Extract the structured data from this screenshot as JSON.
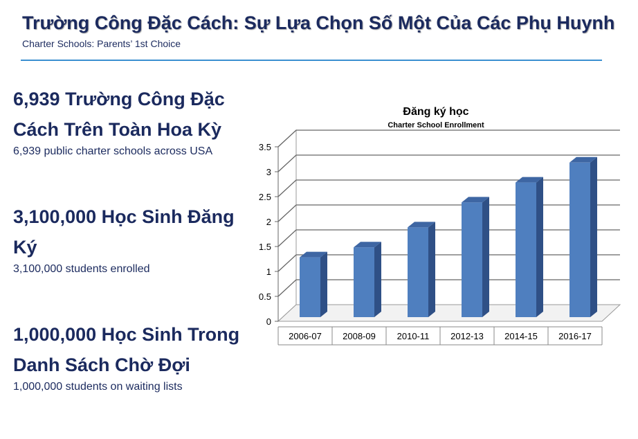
{
  "header": {
    "title": "Trường Công Đặc Cách: Sự Lựa Chọn Số Một Của Các Phụ Huynh",
    "subtitle": "Charter Schools: Parents’ 1st Choice"
  },
  "stats": [
    {
      "headline": "6,939 Trường Công Đặc Cách Trên Toàn Hoa Kỳ",
      "caption": "6,939 public charter schools across USA"
    },
    {
      "headline": "3,100,000 Học Sinh Đăng Ký",
      "caption": "3,100,000 students enrolled"
    },
    {
      "headline": "1,000,000 Học Sinh Trong Danh Sách Chờ Đợi",
      "caption": "1,000,000 students on waiting lists"
    }
  ],
  "colors": {
    "primary_text": "#1b2a5e",
    "divider": "#3a8fd0",
    "bar": "#4f7fbf",
    "bar_side": "#2f5086"
  },
  "chart_data": {
    "type": "bar",
    "title": "Đăng ký học",
    "subtitle": "Charter School Enrollment",
    "categories": [
      "2006-07",
      "2008-09",
      "2010-11",
      "2012-13",
      "2014-15",
      "2016-17"
    ],
    "values": [
      1.2,
      1.4,
      1.8,
      2.3,
      2.7,
      3.1
    ],
    "yticks": [
      "0",
      "0.5",
      "1",
      "1.5",
      "2",
      "2.5",
      "3",
      "3.5"
    ],
    "ylim": [
      0,
      3.5
    ],
    "grid": true,
    "xlabel": "",
    "ylabel": ""
  }
}
